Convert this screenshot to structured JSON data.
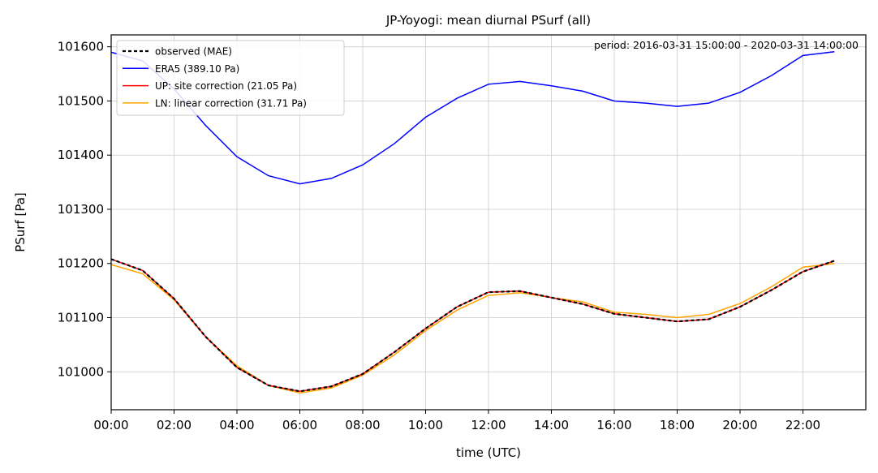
{
  "chart_data": {
    "type": "line",
    "title": "JP-Yoyogi: mean diurnal PSurf (all)",
    "xlabel": "time (UTC)",
    "ylabel": "PSurf [Pa]",
    "annotation": "period: 2016-03-31 15:00:00 - 2020-03-31 14:00:00",
    "xlim": [
      0,
      24
    ],
    "ylim": [
      100930,
      101622
    ],
    "xticks": [
      0,
      2,
      4,
      6,
      8,
      10,
      12,
      14,
      16,
      18,
      20,
      22
    ],
    "xtick_labels": [
      "00:00",
      "02:00",
      "04:00",
      "06:00",
      "08:00",
      "10:00",
      "12:00",
      "14:00",
      "16:00",
      "18:00",
      "20:00",
      "22:00"
    ],
    "yticks": [
      101000,
      101100,
      101200,
      101300,
      101400,
      101500,
      101600
    ],
    "ytick_labels": [
      "101000",
      "101100",
      "101200",
      "101300",
      "101400",
      "101500",
      "101600"
    ],
    "grid": true,
    "legend_position": "top-left",
    "x": [
      0,
      1,
      2,
      3,
      4,
      5,
      6,
      7,
      8,
      9,
      10,
      11,
      12,
      13,
      14,
      15,
      16,
      17,
      18,
      19,
      20,
      21,
      22,
      23
    ],
    "series": [
      {
        "name": "observed (MAE)",
        "color": "#000000",
        "dashed": true,
        "values": [
          101208,
          101187,
          101135,
          101065,
          101008,
          100975,
          100964,
          100973,
          100996,
          101036,
          101080,
          101120,
          101147,
          101149,
          101137,
          101125,
          101107,
          101100,
          101093,
          101097,
          101120,
          101151,
          101185,
          101205
        ]
      },
      {
        "name": "ERA5 (389.10 Pa)",
        "color": "#0000ff",
        "dashed": false,
        "values": [
          101590,
          101574,
          101522,
          101455,
          101397,
          101362,
          101347,
          101357,
          101382,
          101421,
          101470,
          101505,
          101531,
          101536,
          101528,
          101518,
          101500,
          101496,
          101490,
          101496,
          101516,
          101547,
          101584,
          101591
        ]
      },
      {
        "name": "UP: site correction (21.05 Pa)",
        "color": "#ff0000",
        "dashed": false,
        "values": [
          101208,
          101187,
          101135,
          101065,
          101008,
          100975,
          100964,
          100973,
          100996,
          101036,
          101080,
          101120,
          101147,
          101149,
          101137,
          101125,
          101107,
          101100,
          101093,
          101097,
          101120,
          101151,
          101185,
          101205
        ]
      },
      {
        "name": "LN: linear correction (31.71 Pa)",
        "color": "#ffa500",
        "dashed": false,
        "values": [
          101198,
          101181,
          101133,
          101065,
          101011,
          100975,
          100961,
          100970,
          100994,
          101031,
          101076,
          101114,
          101141,
          101146,
          101137,
          101129,
          101110,
          101106,
          101100,
          101106,
          101126,
          101157,
          101193,
          101200
        ]
      }
    ]
  }
}
